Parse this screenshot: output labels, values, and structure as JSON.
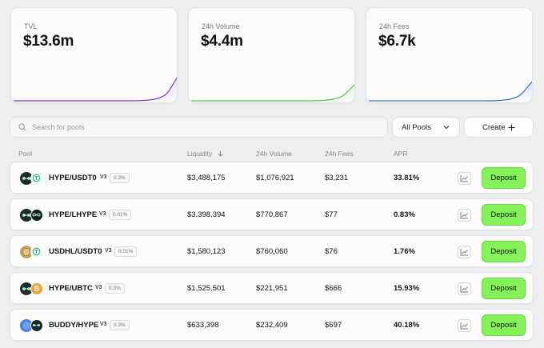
{
  "stats": [
    {
      "label": "TVL",
      "value": "$13.6m",
      "color": "#7e3bd4"
    },
    {
      "label": "24h Volume",
      "value": "$4.4m",
      "color": "#3fd43a"
    },
    {
      "label": "24h Fees",
      "value": "$6.7k",
      "color": "#2f6fd6"
    }
  ],
  "search": {
    "placeholder": "Search for pools"
  },
  "filter": {
    "label": "All Pools"
  },
  "create": {
    "label": "Create"
  },
  "columns": {
    "pool": "Pool",
    "liquidity": "Liquidity",
    "volume": "24h Volume",
    "fees": "24h Fees",
    "apr": "APR"
  },
  "deposit_label": "Deposit",
  "colors": {
    "deposit": "#84f35a"
  },
  "rows": [
    {
      "pair": "HYPE/USDT0",
      "version": "V3",
      "fee": "0.3%",
      "liquidity": "$3,488,175",
      "volume": "$1,076,921",
      "fees": "$3,231",
      "apr": "33.81%",
      "token1": "hype-icon",
      "token2": "usdt0-icon"
    },
    {
      "pair": "HYPE/LHYPE",
      "version": "V3",
      "fee": "0.01%",
      "liquidity": "$3,398,394",
      "volume": "$770,867",
      "fees": "$77",
      "apr": "0.83%",
      "token1": "hype-icon",
      "token2": "lhype-icon"
    },
    {
      "pair": "USDHL/USDT0",
      "version": "V3",
      "fee": "0.01%",
      "liquidity": "$1,580,123",
      "volume": "$760,060",
      "fees": "$76",
      "apr": "1.76%",
      "token1": "usdhl-icon",
      "token2": "usdt0-icon"
    },
    {
      "pair": "HYPE/UBTC",
      "version": "V3",
      "fee": "0.3%",
      "liquidity": "$1,525,501",
      "volume": "$221,951",
      "fees": "$666",
      "apr": "15.93%",
      "token1": "hype-icon",
      "token2": "ubtc-icon"
    },
    {
      "pair": "BUDDY/HYPE",
      "version": "V3",
      "fee": "0.3%",
      "liquidity": "$633,398",
      "volume": "$232,409",
      "fees": "$697",
      "apr": "40.18%",
      "token1": "buddy-icon",
      "token2": "hype-icon"
    }
  ]
}
